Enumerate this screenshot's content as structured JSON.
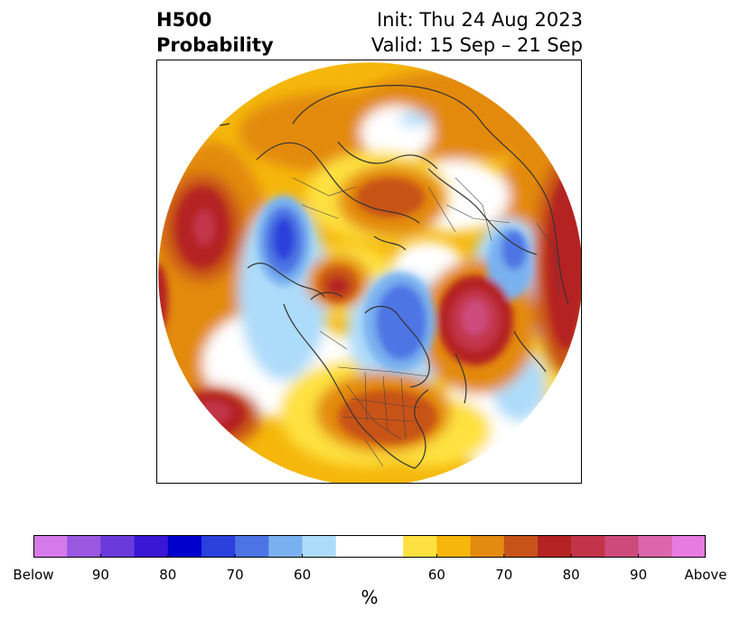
{
  "title": {
    "left_line1": "H500",
    "left_line2": "Probability",
    "right_line1": "Init: Thu 24 Aug 2023",
    "right_line2": "Valid: 15 Sep – 21 Sep"
  },
  "map": {
    "projection": "north-polar-stereographic",
    "coastline_color": "#333333"
  },
  "colorbar": {
    "units_label": "%",
    "colors": [
      "#d77ae9",
      "#9a58e0",
      "#6a3adb",
      "#3a17d4",
      "#0000cd",
      "#2a3fdb",
      "#4d74e4",
      "#79b1f0",
      "#addcfa",
      "#ffffff",
      "#ffffff",
      "#fee140",
      "#f5b70c",
      "#e38a10",
      "#c85319",
      "#b42321",
      "#c3344a",
      "#cd4b7b",
      "#dc66ab",
      "#e77be0"
    ],
    "ticks": [
      {
        "label": "Below",
        "index": 0
      },
      {
        "label": "90",
        "index": 2
      },
      {
        "label": "80",
        "index": 4
      },
      {
        "label": "70",
        "index": 6
      },
      {
        "label": "60",
        "index": 8
      },
      {
        "label": "60",
        "index": 12
      },
      {
        "label": "70",
        "index": 14
      },
      {
        "label": "80",
        "index": 16
      },
      {
        "label": "90",
        "index": 18
      },
      {
        "label": "Above",
        "index": 20
      }
    ]
  },
  "anomaly_centers": [
    {
      "sign": "above",
      "level": 8,
      "region": "North Pacific (west)"
    },
    {
      "sign": "above",
      "level": 8,
      "region": "North Atlantic / south of Greenland"
    },
    {
      "sign": "above",
      "level": 6,
      "region": "Eastern Russia / Siberia"
    },
    {
      "sign": "above",
      "level": 5,
      "region": "Eastern United States"
    },
    {
      "sign": "above",
      "level": 6,
      "region": "Gulf of Alaska"
    },
    {
      "sign": "above",
      "level": 7,
      "region": "Subtropical North Pacific"
    },
    {
      "sign": "above",
      "level": 6,
      "region": "Western Europe / Atlantic coast"
    },
    {
      "sign": "below",
      "level": 5,
      "region": "Central Asia / Mongolia"
    },
    {
      "sign": "below",
      "level": 4,
      "region": "Canadian Arctic / Baffin Bay"
    },
    {
      "sign": "below",
      "level": 2,
      "region": "Eastern Europe"
    }
  ]
}
